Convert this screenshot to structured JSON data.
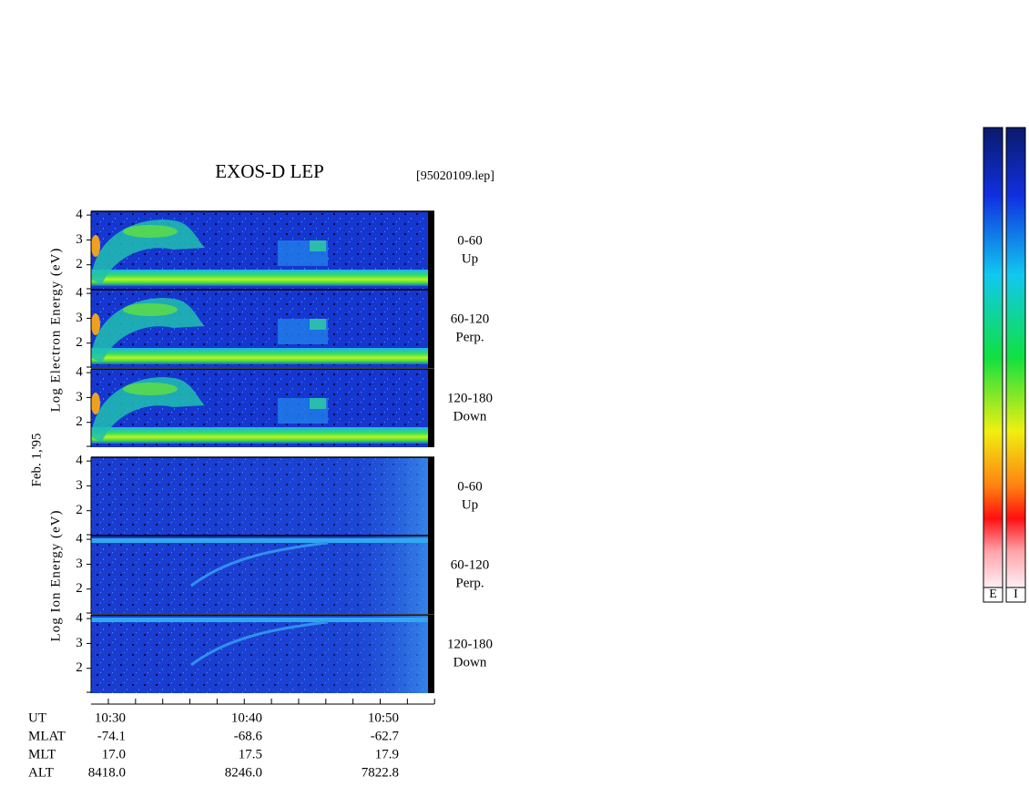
{
  "title": "EXOS-D LEP",
  "file": "[95020109.lep]",
  "date": "Feb. 1,'95",
  "groups": [
    "Log Electron Energy (eV)",
    "Log Ion Energy (eV)"
  ],
  "panels": [
    {
      "angle": "0-60",
      "direction": "Up"
    },
    {
      "angle": "60-120",
      "direction": "Perp."
    },
    {
      "angle": "120-180",
      "direction": "Down"
    },
    {
      "angle": "0-60",
      "direction": "Up"
    },
    {
      "angle": "60-120",
      "direction": "Perp."
    },
    {
      "angle": "120-180",
      "direction": "Down"
    }
  ],
  "energy_ticks": [
    2,
    3,
    4
  ],
  "time_ticks": [
    "10:30",
    "10:40",
    "10:50"
  ],
  "ephemeris": {
    "labels": [
      "UT",
      "MLAT",
      "MLT",
      "ALT"
    ],
    "rows": [
      [
        "-74.1",
        "-68.6",
        "-62.7"
      ],
      [
        "17.0",
        "17.5",
        "17.9"
      ],
      [
        "8418.0",
        "8246.0",
        "7822.8"
      ]
    ]
  },
  "colorbars": [
    "E",
    "I"
  ]
}
